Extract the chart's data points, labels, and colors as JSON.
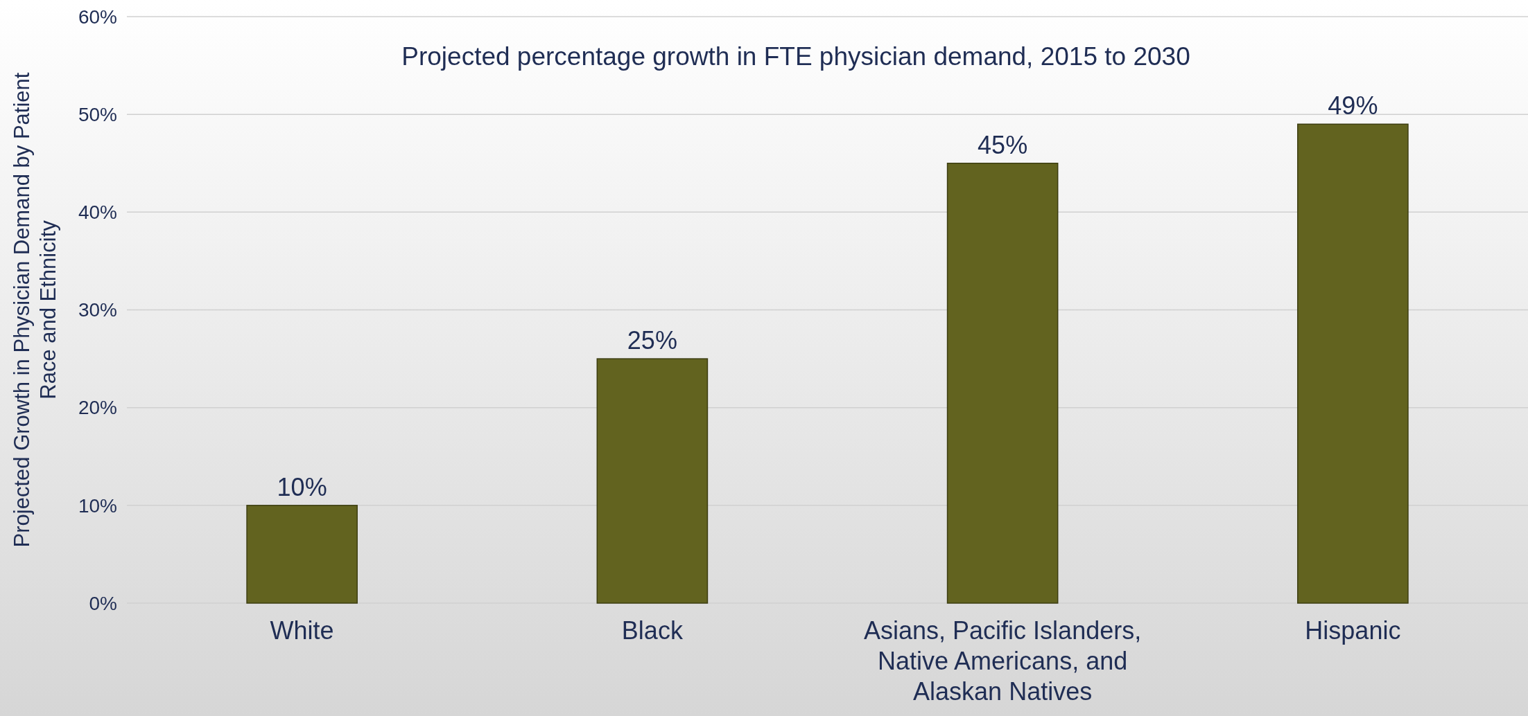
{
  "chart_data": {
    "type": "bar",
    "title": "Projected percentage growth in FTE physician demand, 2015 to 2030",
    "ylabel": "Projected Growth in Physician Demand by Patient Race and Ethnicity",
    "categories": [
      "White",
      "Black",
      "Asians, Pacific Islanders, Native Americans, and Alaskan Natives",
      "Hispanic"
    ],
    "values": [
      10,
      25,
      45,
      49
    ],
    "color": "#62631f",
    "ylim": [
      0,
      60
    ],
    "yticks": [
      {
        "value": 0,
        "label": "0%"
      },
      {
        "value": 10,
        "label": "10%"
      },
      {
        "value": 20,
        "label": "20%"
      },
      {
        "value": 30,
        "label": "30%"
      },
      {
        "value": 40,
        "label": "40%"
      },
      {
        "value": 50,
        "label": "50%"
      },
      {
        "value": 60,
        "label": "60%"
      }
    ],
    "grid": "y",
    "value_labels": [
      "10%",
      "25%",
      "45%",
      "49%"
    ]
  }
}
